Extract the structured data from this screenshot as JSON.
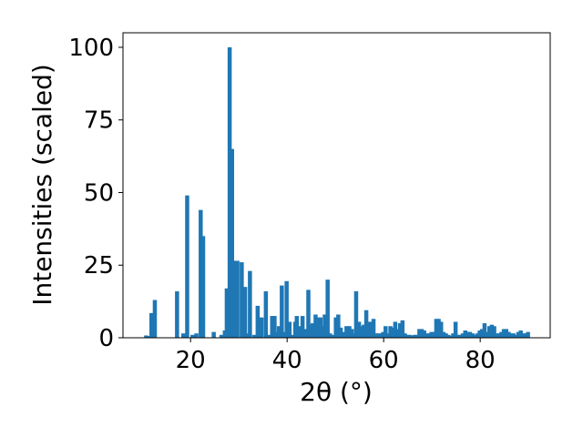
{
  "chart_data": {
    "type": "bar",
    "title": "",
    "xlabel": "2θ (°)",
    "ylabel": "Intensities (scaled)",
    "xlim": [
      6.0,
      94.5
    ],
    "ylim": [
      0,
      105
    ],
    "xticks": [
      20,
      40,
      60,
      80
    ],
    "yticks": [
      0,
      25,
      50,
      75,
      100
    ],
    "grid": false,
    "bar_color": "#1f77b4",
    "bar_width": 0.85,
    "series": [
      {
        "x": [
          10.8,
          11.1,
          11.9,
          12.6,
          17.2,
          18.5,
          19.3,
          20.4,
          21.2,
          22.1,
          22.6,
          24.8,
          26.4,
          27.1,
          27.5,
          28.1,
          28.6,
          29.0,
          29.7,
          30.6,
          31.3,
          31.6,
          32.3,
          33.2,
          33.9,
          34.7,
          35.6,
          36.3,
          36.9,
          37.4,
          37.9,
          38.3,
          38.9,
          39.3,
          39.9,
          40.5,
          41.1,
          41.7,
          42.0,
          42.6,
          43.2,
          43.8,
          44.4,
          44.9,
          45.3,
          45.9,
          46.4,
          46.9,
          47.3,
          47.8,
          48.4,
          48.9,
          49.4,
          50.1,
          50.6,
          51.1,
          51.8,
          52.3,
          52.9,
          53.4,
          53.9,
          54.3,
          54.9,
          55.4,
          55.9,
          56.4,
          56.9,
          57.4,
          57.9,
          58.4,
          58.9,
          59.4,
          59.9,
          60.4,
          60.9,
          61.4,
          61.9,
          62.4,
          62.9,
          63.4,
          63.9,
          64.4,
          64.9,
          65.4,
          65.9,
          66.4,
          66.9,
          67.4,
          67.9,
          68.4,
          68.9,
          69.4,
          69.9,
          70.4,
          70.9,
          71.4,
          71.9,
          72.4,
          72.9,
          73.4,
          73.9,
          74.4,
          74.9,
          75.4,
          75.9,
          76.4,
          76.9,
          77.4,
          77.9,
          78.4,
          78.9,
          79.4,
          79.9,
          80.4,
          80.9,
          81.4,
          81.9,
          82.4,
          82.9,
          83.4,
          83.9,
          84.4,
          84.9,
          85.4,
          85.9,
          86.4,
          86.9,
          87.4,
          87.9,
          88.4,
          88.9,
          89.4,
          89.9
        ],
        "values": [
          0.8,
          0.6,
          8.5,
          13,
          16,
          1.5,
          49,
          1,
          1.5,
          44,
          35,
          2,
          1,
          2.5,
          17,
          100,
          65,
          26.5,
          26.5,
          26,
          17.5,
          1.5,
          23,
          1,
          11,
          7,
          16,
          1,
          7.5,
          7.5,
          2,
          4,
          18,
          2,
          19.5,
          5.5,
          1,
          5.5,
          7.5,
          4,
          7.5,
          3,
          16.5,
          4.5,
          5,
          8,
          7,
          7,
          4,
          8,
          20,
          1.5,
          1,
          7,
          8,
          3.5,
          2,
          4,
          4,
          3,
          1.5,
          16,
          5.5,
          4,
          4.5,
          9.5,
          5.5,
          5.5,
          6.5,
          1.5,
          1.5,
          1.5,
          2,
          4,
          1.5,
          4,
          3.5,
          5.5,
          3,
          5,
          6,
          1.5,
          1,
          1,
          0.8,
          1,
          1,
          3,
          3,
          2.5,
          1.5,
          1.5,
          2,
          2,
          6.5,
          6.5,
          5.5,
          2,
          1.5,
          1,
          0.7,
          1.5,
          5.5,
          1,
          1,
          1.5,
          2.5,
          2,
          2,
          1.5,
          1,
          1.5,
          2.5,
          3,
          5,
          2,
          4,
          4.5,
          4,
          1.5,
          1.5,
          2,
          3,
          3,
          2,
          1.5,
          1.5,
          1,
          2,
          2.5,
          1.5,
          1.5,
          2
        ]
      }
    ]
  }
}
